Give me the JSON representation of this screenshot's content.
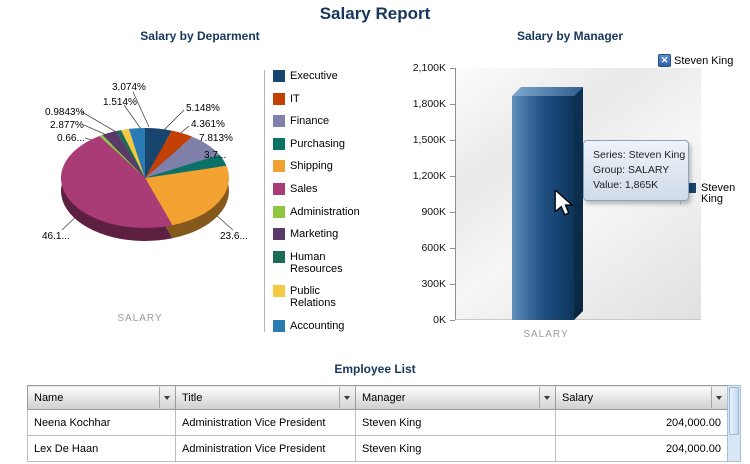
{
  "page": {
    "title": "Salary Report"
  },
  "pie_chart": {
    "title": "Salary by Deparment",
    "group_label": "SALARY"
  },
  "bar_chart": {
    "title": "Salary by Manager",
    "group_label": "SALARY",
    "filter_chip": "Steven King",
    "legend_label": "Steven King",
    "tooltip": {
      "series_line": "Series: Steven King",
      "group_line": "Group: SALARY",
      "value_line": "Value: 1,865K"
    }
  },
  "icons": {
    "close": "✕"
  },
  "chart_data": [
    {
      "type": "pie",
      "title": "Salary by Deparment",
      "group": "SALARY",
      "legend_position": "right",
      "slices": [
        {
          "label": "Executive",
          "value": 5.148,
          "display": "5.148%",
          "color": "#17456e"
        },
        {
          "label": "IT",
          "value": 4.361,
          "display": "4.361%",
          "color": "#c24005"
        },
        {
          "label": "Finance",
          "value": 7.813,
          "display": "7.813%",
          "color": "#7f81aa"
        },
        {
          "label": "Purchasing",
          "value": 3.7,
          "display": "3.7...",
          "color": "#0b7268"
        },
        {
          "label": "Shipping",
          "value": 23.6,
          "display": "23.6...",
          "color": "#f2a231"
        },
        {
          "label": "Sales",
          "value": 46.1,
          "display": "46.1...",
          "color": "#a93b76"
        },
        {
          "label": "Administration",
          "value": 0.66,
          "display": "0.66...",
          "color": "#8fc63f"
        },
        {
          "label": "Marketing",
          "value": 2.877,
          "display": "2.877%",
          "color": "#5a3a69"
        },
        {
          "label": "Human Resources",
          "value": 0.9843,
          "display": "0.9843%",
          "color": "#1c6b57"
        },
        {
          "label": "Public Relations",
          "value": 1.514,
          "display": "1.514%",
          "color": "#f6c944"
        },
        {
          "label": "Accounting",
          "value": 3.074,
          "display": "3.074%",
          "color": "#2a7ab5"
        }
      ]
    },
    {
      "type": "bar",
      "title": "Salary by Manager",
      "categories": [
        "SALARY"
      ],
      "series": [
        {
          "name": "Steven King",
          "values": [
            1865
          ],
          "color": "#17456e"
        }
      ],
      "y_ticks": [
        "0K",
        "300K",
        "600K",
        "900K",
        "1,200K",
        "1,500K",
        "1,800K",
        "2,100K"
      ],
      "ylim": [
        0,
        2100
      ],
      "legend_position": "right",
      "tooltip": {
        "series": "Steven King",
        "group": "SALARY",
        "value": "1,865K"
      }
    }
  ],
  "employee_table": {
    "title": "Employee List",
    "columns": [
      "Name",
      "Title",
      "Manager",
      "Salary"
    ],
    "rows": [
      [
        "Neena Kochhar",
        "Administration Vice President",
        "Steven King",
        "204,000.00"
      ],
      [
        "Lex De Haan",
        "Administration Vice President",
        "Steven King",
        "204,000.00"
      ]
    ]
  }
}
